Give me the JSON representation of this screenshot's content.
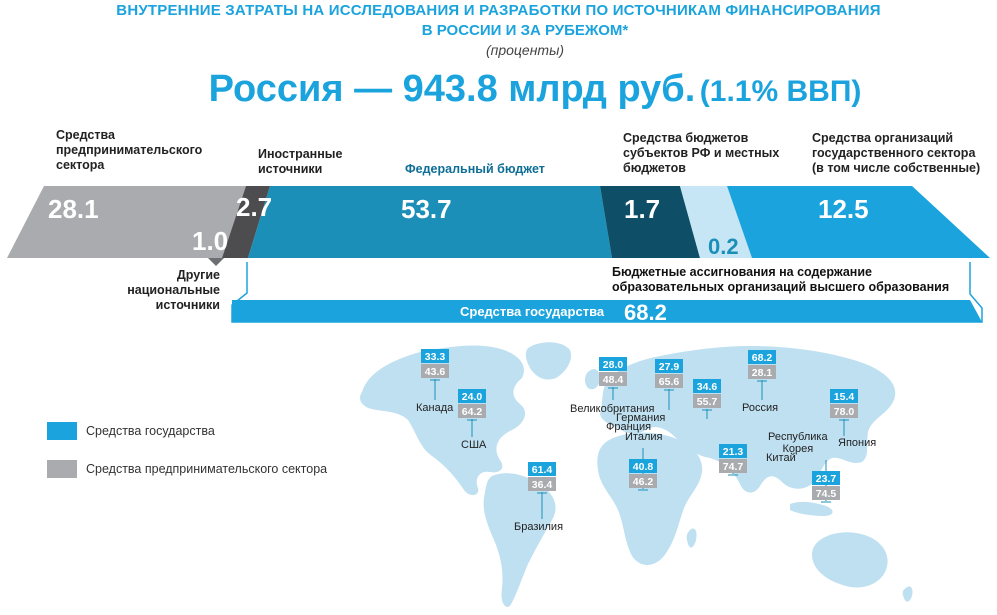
{
  "header": {
    "title_line1": "ВНУТРЕННИЕ ЗАТРАТЫ НА ИССЛЕДОВАНИЯ И РАЗРАБОТКИ ПО ИСТОЧНИКАМ ФИНАНСИРОВАНИЯ",
    "title_line2": "В РОССИИ И ЗА РУБЕЖОМ*",
    "subtitle": "(проценты)",
    "headline_main": "Россия — 943.8 млрд руб.",
    "headline_sub": "(1.1% ВВП)"
  },
  "colors": {
    "business": "#a9abae",
    "business_dark": "#6d6e71",
    "foreign": "#4d4d4f",
    "federal": "#1b8fb7",
    "regional": "#0e4e66",
    "higher_ed": "#c6e6f5",
    "state_orgs": "#1ba3dd",
    "state_total": "#1ba3dd",
    "map": "#bfe0f1",
    "badge_state": "#1ba3dd",
    "badge_business": "#a9abae"
  },
  "chart_data": [
    {
      "type": "bar",
      "title": "Россия — 943.8 млрд руб. (1.1% ВВП)",
      "categories": [
        "Средства предпринимательского сектора",
        "Другие национальные источники",
        "Иностранные источники",
        "Федеральный бюджет",
        "Средства бюджетов субъектов РФ и местных бюджетов",
        "Бюджетные ассигнования на содержание образовательных организаций высшего образования",
        "Средства организаций государственного сектора (в том числе собственные)"
      ],
      "values": [
        28.1,
        1.0,
        2.7,
        53.7,
        1.7,
        0.2,
        12.5
      ],
      "value_labels": [
        "28.1",
        "1.0",
        "2.7",
        "53.7",
        "1.7",
        "0.2",
        "12.5"
      ],
      "total_label": "Средства государства",
      "total_value": 68.2,
      "total_value_label": "68.2"
    },
    {
      "type": "bar",
      "series": [
        {
          "name": "Средства государства",
          "values": [
            33.3,
            24.0,
            61.4,
            28.0,
            27.9,
            34.6,
            40.8,
            68.2,
            21.3,
            15.4,
            23.7
          ]
        },
        {
          "name": "Средства предпринимательского сектора",
          "values": [
            43.6,
            64.2,
            36.4,
            48.4,
            65.6,
            55.7,
            46.2,
            28.1,
            74.7,
            78.0,
            74.5
          ]
        }
      ],
      "categories": [
        "Канада",
        "США",
        "Бразилия",
        "Великобритания",
        "Германия",
        "Франция",
        "Италия",
        "Россия",
        "Китай",
        "Япония",
        "Республика Корея"
      ],
      "countries": [
        {
          "name": "Канада",
          "state": "33.3",
          "business": "43.6"
        },
        {
          "name": "США",
          "state": "24.0",
          "business": "64.2"
        },
        {
          "name": "Бразилия",
          "state": "61.4",
          "business": "36.4"
        },
        {
          "name": "Великобритания",
          "state": "28.0",
          "business": "48.4"
        },
        {
          "name": "Германия",
          "state": "27.9",
          "business": "65.6"
        },
        {
          "name": "Франция",
          "state": "34.6",
          "business": "55.7"
        },
        {
          "name": "Италия",
          "state": "40.8",
          "business": "46.2"
        },
        {
          "name": "Россия",
          "state": "68.2",
          "business": "28.1"
        },
        {
          "name": "Китай",
          "state": "21.3",
          "business": "74.7"
        },
        {
          "name": "Япония",
          "state": "15.4",
          "business": "78.0"
        },
        {
          "name": "Республика Корея",
          "state": "23.7",
          "business": "74.5"
        }
      ],
      "korea_label_line1": "Республика",
      "korea_label_line2": "Корея"
    }
  ],
  "labels": {
    "business": [
      "Средства",
      "предпринимательского",
      "сектора"
    ],
    "other_national": [
      "Другие",
      "национальные",
      "источники"
    ],
    "foreign": [
      "Иностранные",
      "источники"
    ],
    "federal": "Федеральный бюджет",
    "regional": [
      "Средства бюджетов",
      "субъектов РФ и местных",
      "бюджетов"
    ],
    "higher_ed": [
      "Бюджетные ассигнования на содержание",
      "образовательных организаций высшего образования"
    ],
    "state_orgs": [
      "Средства организаций",
      "государственного сектора",
      "(в том числе собственные)"
    ]
  },
  "legend": {
    "state": "Средства государства",
    "business": "Средства предпринимательского сектора"
  }
}
